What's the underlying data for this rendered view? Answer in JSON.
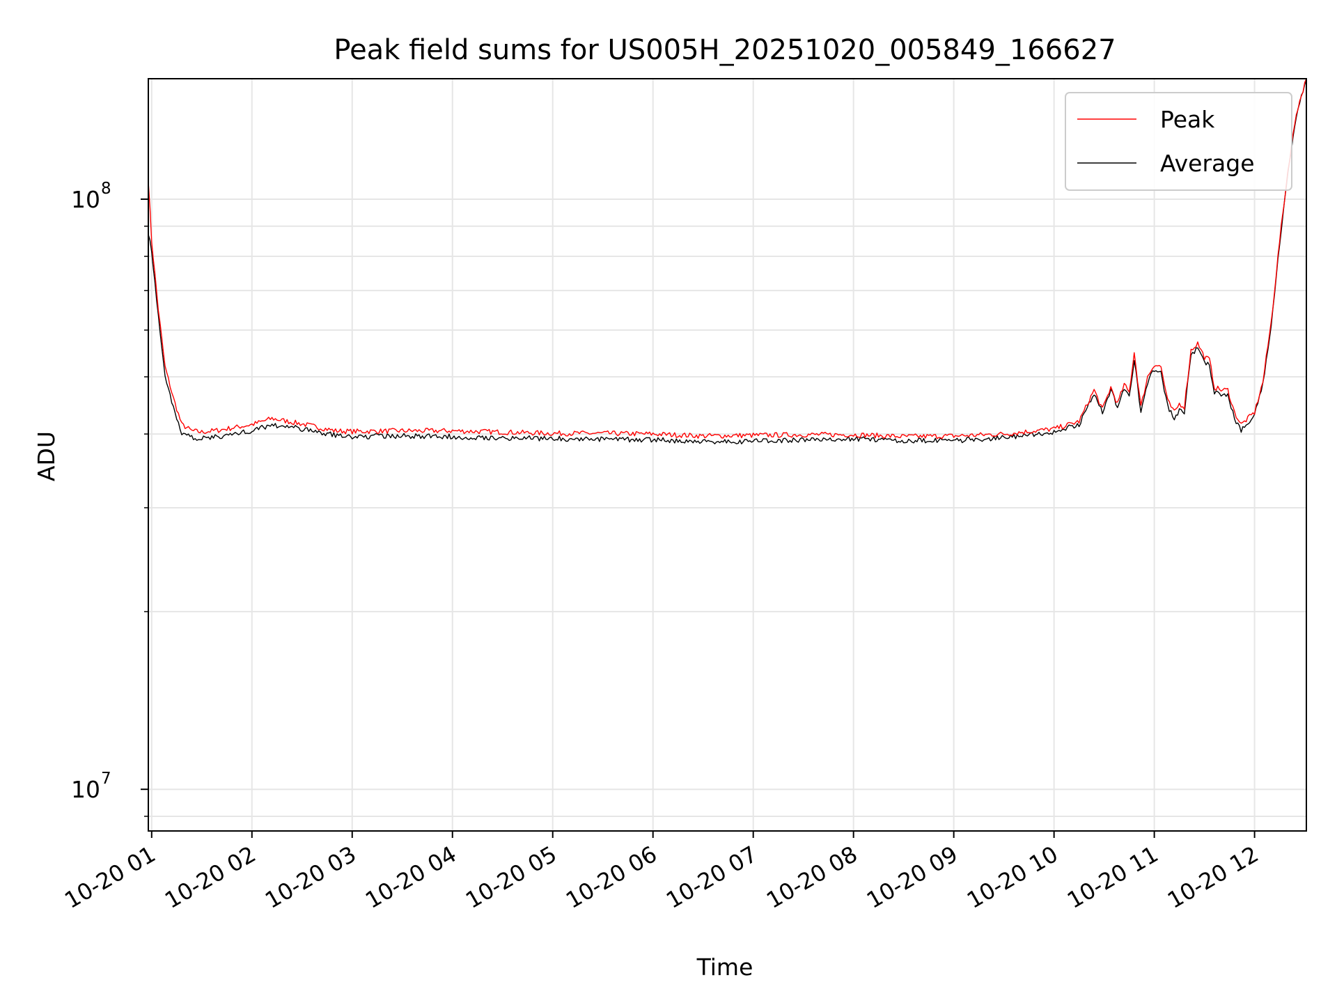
{
  "chart_data": {
    "type": "line",
    "title": "Peak field sums for US005H_20251020_005849_166627",
    "xlabel": "Time",
    "ylabel": "ADU",
    "yscale": "log",
    "grid": true,
    "legend_position": "top-right",
    "xlim": [
      "2025-10-20 00:58",
      "2025-10-20 12:31"
    ],
    "ylim": [
      8500000,
      160000000
    ],
    "x_ticks": [
      {
        "value": "2025-10-20 01:00",
        "label": "10-20 01"
      },
      {
        "value": "2025-10-20 02:00",
        "label": "10-20 02"
      },
      {
        "value": "2025-10-20 03:00",
        "label": "10-20 03"
      },
      {
        "value": "2025-10-20 04:00",
        "label": "10-20 04"
      },
      {
        "value": "2025-10-20 05:00",
        "label": "10-20 05"
      },
      {
        "value": "2025-10-20 06:00",
        "label": "10-20 06"
      },
      {
        "value": "2025-10-20 07:00",
        "label": "10-20 07"
      },
      {
        "value": "2025-10-20 08:00",
        "label": "10-20 08"
      },
      {
        "value": "2025-10-20 09:00",
        "label": "10-20 09"
      },
      {
        "value": "2025-10-20 10:00",
        "label": "10-20 10"
      },
      {
        "value": "2025-10-20 11:00",
        "label": "10-20 11"
      },
      {
        "value": "2025-10-20 12:00",
        "label": "10-20 12"
      }
    ],
    "y_ticks_major": [
      {
        "value": 10000000,
        "base": "10",
        "exp": "7"
      },
      {
        "value": 100000000,
        "base": "10",
        "exp": "8"
      }
    ],
    "y_ticks_minor": [
      9000000,
      20000000,
      30000000,
      40000000,
      50000000,
      60000000,
      70000000,
      80000000,
      90000000
    ],
    "x": [
      "2025-10-20 00:58",
      "2025-10-20 01:00",
      "2025-10-20 01:04",
      "2025-10-20 01:08",
      "2025-10-20 01:13",
      "2025-10-20 01:18",
      "2025-10-20 01:24",
      "2025-10-20 01:30",
      "2025-10-20 01:40",
      "2025-10-20 02:00",
      "2025-10-20 02:12",
      "2025-10-20 02:30",
      "2025-10-20 02:50",
      "2025-10-20 03:00",
      "2025-10-20 03:30",
      "2025-10-20 04:00",
      "2025-10-20 04:30",
      "2025-10-20 05:00",
      "2025-10-20 05:30",
      "2025-10-20 06:00",
      "2025-10-20 06:30",
      "2025-10-20 07:00",
      "2025-10-20 07:30",
      "2025-10-20 08:00",
      "2025-10-20 08:30",
      "2025-10-20 09:00",
      "2025-10-20 09:30",
      "2025-10-20 10:00",
      "2025-10-20 10:15",
      "2025-10-20 10:24",
      "2025-10-20 10:29",
      "2025-10-20 10:34",
      "2025-10-20 10:38",
      "2025-10-20 10:42",
      "2025-10-20 10:45",
      "2025-10-20 10:48",
      "2025-10-20 10:52",
      "2025-10-20 10:56",
      "2025-10-20 11:00",
      "2025-10-20 11:04",
      "2025-10-20 11:08",
      "2025-10-20 11:12",
      "2025-10-20 11:15",
      "2025-10-20 11:18",
      "2025-10-20 11:22",
      "2025-10-20 11:26",
      "2025-10-20 11:30",
      "2025-10-20 11:33",
      "2025-10-20 11:36",
      "2025-10-20 11:40",
      "2025-10-20 11:44",
      "2025-10-20 11:48",
      "2025-10-20 11:52",
      "2025-10-20 11:56",
      "2025-10-20 12:00",
      "2025-10-20 12:05",
      "2025-10-20 12:10",
      "2025-10-20 12:15",
      "2025-10-20 12:20",
      "2025-10-20 12:25",
      "2025-10-20 12:31"
    ],
    "series": [
      {
        "name": "Peak",
        "color": "#ff0000",
        "values": [
          108000000,
          85000000,
          65000000,
          52000000,
          46000000,
          41500000,
          40500000,
          40300000,
          40600000,
          41500000,
          42500000,
          41600000,
          40500000,
          40400000,
          40500000,
          40500000,
          40300000,
          40100000,
          40100000,
          40000000,
          39700000,
          39800000,
          39900000,
          39900000,
          39600000,
          39700000,
          40000000,
          40800000,
          42000000,
          47500000,
          44000000,
          48000000,
          45000000,
          48500000,
          47000000,
          55000000,
          44500000,
          50000000,
          52500000,
          52000000,
          45500000,
          43500000,
          45000000,
          44500000,
          55500000,
          57000000,
          54000000,
          53500000,
          48000000,
          47500000,
          47500000,
          43500000,
          41500000,
          42500000,
          43500000,
          49000000,
          62000000,
          85000000,
          112000000,
          140000000,
          160000000
        ]
      },
      {
        "name": "Average",
        "color": "#000000",
        "values": [
          88000000,
          82000000,
          63000000,
          50000000,
          44500000,
          40000000,
          39500000,
          39300000,
          39600000,
          40500000,
          41500000,
          40800000,
          39800000,
          39600000,
          39700000,
          39600000,
          39400000,
          39300000,
          39200000,
          39100000,
          38800000,
          38900000,
          39100000,
          39300000,
          39000000,
          39000000,
          39400000,
          40300000,
          41500000,
          47000000,
          43500000,
          47500000,
          44500000,
          47800000,
          46000000,
          53500000,
          43500000,
          49000000,
          51500000,
          51000000,
          44500000,
          42500000,
          44000000,
          43500000,
          54500000,
          56000000,
          53000000,
          52500000,
          47000000,
          46500000,
          46500000,
          42500000,
          40500000,
          41800000,
          43000000,
          48500000,
          61000000,
          84000000,
          111000000,
          139000000,
          160000000
        ]
      }
    ]
  }
}
